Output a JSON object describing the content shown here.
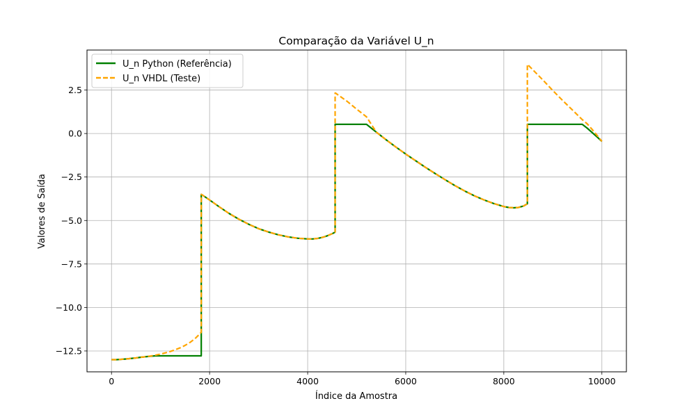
{
  "chart_data": {
    "type": "line",
    "title": "Comparação da Variável U_n",
    "xlabel": "Índice da Amostra",
    "ylabel": "Valores de Saída",
    "xlim": [
      -500,
      10500
    ],
    "ylim": [
      -13.7,
      4.8
    ],
    "xticks": [
      0,
      2000,
      4000,
      6000,
      8000,
      10000
    ],
    "yticks": [
      2.5,
      0.0,
      -2.5,
      -5.0,
      -7.5,
      -10.0,
      -12.5
    ],
    "xtick_labels": [
      "0",
      "2000",
      "4000",
      "6000",
      "8000",
      "10000"
    ],
    "ytick_labels": [
      "2.5",
      "0.0",
      "−2.5",
      "−5.0",
      "−7.5",
      "−10.0",
      "−12.5"
    ],
    "grid": true,
    "legend_position": "top-left",
    "series": [
      {
        "name": "U_n Python (Referência)",
        "color": "#008000",
        "style": "solid",
        "x": [
          0,
          100,
          200,
          300,
          400,
          500,
          600,
          700,
          800,
          900,
          1000,
          1830,
          1830,
          1835,
          2000,
          2200,
          2400,
          2600,
          2800,
          3000,
          3200,
          3400,
          3600,
          3800,
          4000,
          4100,
          4200,
          4300,
          4400,
          4500,
          4560,
          4560,
          4565,
          5000,
          5200,
          5400,
          5600,
          5800,
          6000,
          6200,
          6400,
          6600,
          6800,
          7000,
          7200,
          7400,
          7600,
          7800,
          8000,
          8100,
          8200,
          8300,
          8400,
          8480,
          8480,
          8485,
          9600,
          9700,
          9800,
          9900,
          10000
        ],
        "y": [
          -13.0,
          -13.0,
          -12.98,
          -12.96,
          -12.93,
          -12.9,
          -12.86,
          -12.83,
          -12.8,
          -12.78,
          -12.78,
          -12.78,
          -3.5,
          -3.5,
          -3.82,
          -4.22,
          -4.6,
          -4.93,
          -5.22,
          -5.47,
          -5.66,
          -5.82,
          -5.94,
          -6.02,
          -6.06,
          -6.06,
          -6.03,
          -5.97,
          -5.88,
          -5.76,
          -5.67,
          0.53,
          0.53,
          0.53,
          0.53,
          0.08,
          -0.36,
          -0.78,
          -1.18,
          -1.56,
          -1.94,
          -2.3,
          -2.65,
          -2.99,
          -3.3,
          -3.58,
          -3.82,
          -4.03,
          -4.2,
          -4.25,
          -4.27,
          -4.25,
          -4.17,
          -4.04,
          0.53,
          0.53,
          0.53,
          0.31,
          0.06,
          -0.19,
          -0.45
        ]
      },
      {
        "name": "U_n VHDL (Teste)",
        "color": "#ffa500",
        "style": "dashed",
        "x": [
          0,
          100,
          200,
          300,
          400,
          500,
          600,
          700,
          800,
          900,
          1000,
          1100,
          1200,
          1300,
          1400,
          1500,
          1600,
          1700,
          1800,
          1830,
          1830,
          1835,
          2000,
          2200,
          2400,
          2600,
          2800,
          3000,
          3200,
          3400,
          3600,
          3800,
          4000,
          4100,
          4200,
          4300,
          4400,
          4500,
          4560,
          4560,
          4565,
          4800,
          5000,
          5200,
          5400,
          5600,
          5800,
          6000,
          6200,
          6400,
          6600,
          6800,
          7000,
          7200,
          7400,
          7600,
          7800,
          8000,
          8100,
          8200,
          8300,
          8400,
          8480,
          8480,
          8485,
          8800,
          9000,
          9200,
          9400,
          9600,
          9700,
          9800,
          9900,
          10000
        ],
        "y": [
          -13.0,
          -13.0,
          -12.98,
          -12.96,
          -12.93,
          -12.9,
          -12.86,
          -12.83,
          -12.79,
          -12.74,
          -12.68,
          -12.61,
          -12.53,
          -12.43,
          -12.32,
          -12.18,
          -12.01,
          -11.8,
          -11.52,
          -11.42,
          -3.5,
          -3.5,
          -3.82,
          -4.22,
          -4.6,
          -4.93,
          -5.22,
          -5.47,
          -5.66,
          -5.82,
          -5.94,
          -6.02,
          -6.06,
          -6.06,
          -6.03,
          -5.97,
          -5.88,
          -5.76,
          -5.67,
          2.33,
          2.33,
          1.86,
          1.4,
          0.96,
          0.08,
          -0.36,
          -0.78,
          -1.18,
          -1.56,
          -1.94,
          -2.3,
          -2.65,
          -2.99,
          -3.3,
          -3.58,
          -3.82,
          -4.03,
          -4.2,
          -4.25,
          -4.27,
          -4.25,
          -4.17,
          -4.04,
          3.97,
          3.97,
          3.07,
          2.47,
          1.9,
          1.35,
          0.8,
          0.56,
          0.24,
          -0.1,
          -0.45
        ]
      }
    ]
  }
}
